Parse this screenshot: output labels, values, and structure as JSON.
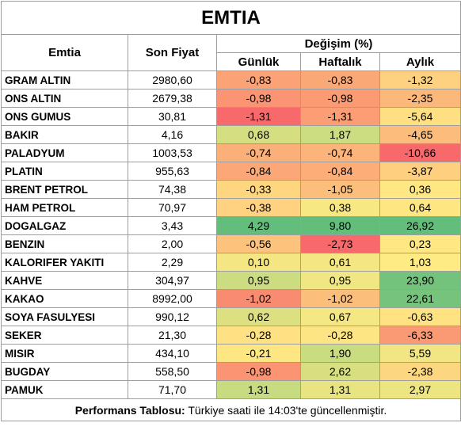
{
  "title": "EMTIA",
  "header": {
    "name": "Emtia",
    "price": "Son Fiyat",
    "change": "Değişim (%)",
    "periods": [
      "Günlük",
      "Haftalık",
      "Aylık"
    ]
  },
  "table": {
    "rows": [
      [
        "GRAM ALTIN",
        "2980,60",
        "-0,83",
        "-0,83",
        "-1,32"
      ],
      [
        "ONS ALTIN",
        "2679,38",
        "-0,98",
        "-0,98",
        "-2,35"
      ],
      [
        "ONS GUMUS",
        "30,81",
        "-1,31",
        "-1,31",
        "-5,64"
      ],
      [
        "BAKIR",
        "4,16",
        "0,68",
        "1,87",
        "-4,65"
      ],
      [
        "PALADYUM",
        "1003,53",
        "-0,74",
        "-0,74",
        "-10,66"
      ],
      [
        "PLATIN",
        "955,63",
        "-0,84",
        "-0,84",
        "-3,87"
      ],
      [
        "BRENT PETROL",
        "74,38",
        "-0,33",
        "-1,05",
        "0,36"
      ],
      [
        "HAM PETROL",
        "70,97",
        "-0,38",
        "0,38",
        "0,64"
      ],
      [
        "DOGALGAZ",
        "3,43",
        "4,29",
        "9,80",
        "26,92"
      ],
      [
        "BENZIN",
        "2,00",
        "-0,56",
        "-2,73",
        "0,23"
      ],
      [
        "KALORIFER YAKITI",
        "2,29",
        "0,10",
        "0,61",
        "1,03"
      ],
      [
        "KAHVE",
        "304,97",
        "0,95",
        "0,95",
        "23,90"
      ],
      [
        "KAKAO",
        "8992,00",
        "-1,02",
        "-1,02",
        "22,61"
      ],
      [
        "SOYA FASULYESI",
        "990,12",
        "0,62",
        "0,67",
        "-0,63"
      ],
      [
        "SEKER",
        "21,30",
        "-0,28",
        "-0,28",
        "-6,33"
      ],
      [
        "MISIR",
        "434,10",
        "-0,21",
        "1,90",
        "5,59"
      ],
      [
        "BUGDAY",
        "558,50",
        "-0,98",
        "2,62",
        "-2,38"
      ],
      [
        "PAMUK",
        "71,70",
        "1,31",
        "1,31",
        "2,97"
      ]
    ],
    "cell_colors": [
      [
        "#fba276",
        "#fba877",
        "#fdd17f"
      ],
      [
        "#fa9473",
        "#fa9b74",
        "#fcb77a"
      ],
      [
        "#f8696b",
        "#fb9d75",
        "#fee082"
      ],
      [
        "#d5df81",
        "#cbdc81",
        "#fcbc7b"
      ],
      [
        "#fcb079",
        "#fcb47a",
        "#f8696b"
      ],
      [
        "#fba777",
        "#fcad78",
        "#fdcf7e"
      ],
      [
        "#fed680",
        "#fcbf7b",
        "#ffe784"
      ],
      [
        "#fed280",
        "#f7e883",
        "#fee683"
      ],
      [
        "#63be7b",
        "#63be7b",
        "#63be7b"
      ],
      [
        "#fdc37d",
        "#f8696b",
        "#ffe784"
      ],
      [
        "#f4e783",
        "#f4e683",
        "#ffeb84"
      ],
      [
        "#cbdc81",
        "#f0e683",
        "#73c37c"
      ],
      [
        "#f98b71",
        "#fcbe7b",
        "#76c47c"
      ],
      [
        "#dde081",
        "#f5e783",
        "#ffe383"
      ],
      [
        "#fee182",
        "#fee583",
        "#fa9a74"
      ],
      [
        "#fee783",
        "#cadc80",
        "#f1e683"
      ],
      [
        "#fa9473",
        "#d7df81",
        "#fdd680"
      ],
      [
        "#c7db80",
        "#e9e482",
        "#ece582"
      ]
    ]
  },
  "footer": {
    "label": "Performans Tablosu:",
    "text": "Türkiye saati ile 14:03'te güncellenmiştir."
  }
}
